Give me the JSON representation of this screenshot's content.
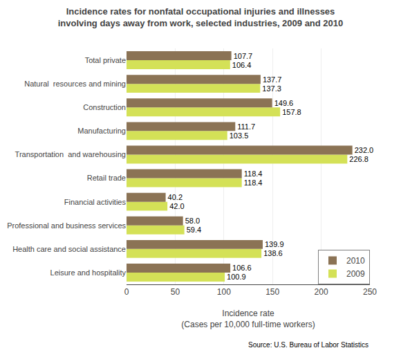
{
  "chart_data": {
    "type": "bar",
    "orientation": "horizontal",
    "title": "Incidence rates for nonfatal occupational injuries and illnesses\ninvolving days away from work, selected industries, 2009 and 2010",
    "xlabel": "Incidence rate\n(Cases per 10,000 full-time workers)",
    "source": "Source: U.S. Bureau of Labor Statistics",
    "categories": [
      "Leisure and hospitality",
      "Health care and social assistance",
      "Professional and business services",
      "Financial activities",
      "Retail trade",
      "Transportation  and warehousing",
      "Manufacturing",
      "Construction",
      "Natural  resources and mining",
      "Total private"
    ],
    "series": [
      {
        "name": "2010",
        "color": "#8B7355",
        "values": [
          106.6,
          139.9,
          58.0,
          40.2,
          118.4,
          232.0,
          111.7,
          149.6,
          137.7,
          107.7
        ],
        "value_labels": [
          "106.6",
          "139.9",
          "58.0",
          "40.2",
          "118.4",
          "232.0",
          "111.7",
          "149.6",
          "137.7",
          "107.7"
        ]
      },
      {
        "name": "2009",
        "color": "#D4E157",
        "values": [
          100.9,
          138.6,
          59.4,
          42.0,
          118.4,
          226.8,
          103.5,
          157.8,
          137.3,
          106.4
        ],
        "value_labels": [
          "100.9",
          "138.6",
          "59.4",
          "42.0",
          "118.4",
          "226.8",
          "103.5",
          "157.8",
          "137.3",
          "106.4"
        ]
      }
    ],
    "xlim": [
      0,
      250
    ],
    "xticks": [
      0,
      50,
      100,
      150,
      200,
      250
    ],
    "grid": true,
    "legend": "lower right",
    "data_labels": true
  }
}
